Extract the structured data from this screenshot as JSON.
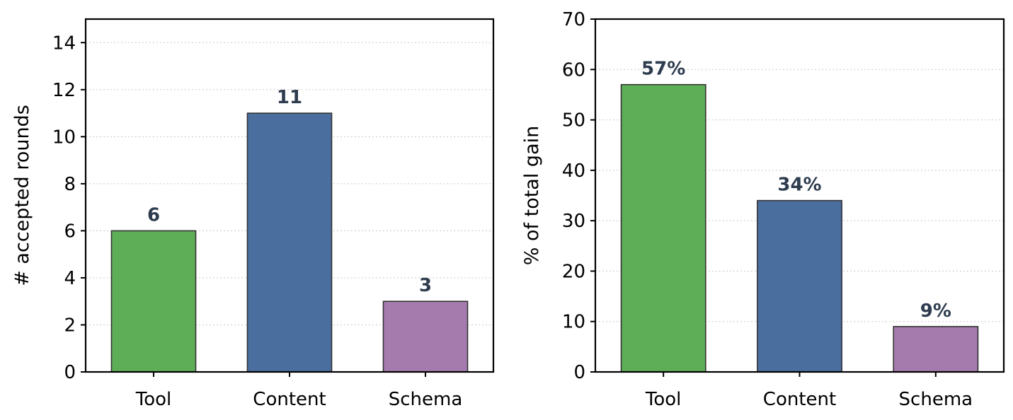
{
  "chart_data": [
    {
      "type": "bar",
      "categories": [
        "Tool",
        "Content",
        "Schema"
      ],
      "values": [
        6,
        11,
        3
      ],
      "data_labels": [
        "6",
        "11",
        "3"
      ],
      "title": "",
      "xlabel": "",
      "ylabel": "# accepted rounds",
      "ylim": [
        0,
        15
      ],
      "yticks": [
        0,
        2,
        4,
        6,
        8,
        10,
        12,
        14
      ],
      "grid": "horizontal dotted",
      "colors": [
        "#5eae58",
        "#4a6e9e",
        "#a57bae"
      ],
      "label_color": "#2e3c4f"
    },
    {
      "type": "bar",
      "categories": [
        "Tool",
        "Content",
        "Schema"
      ],
      "values": [
        57,
        34,
        9
      ],
      "data_labels": [
        "57%",
        "34%",
        "9%"
      ],
      "title": "",
      "xlabel": "",
      "ylabel": "% of total gain",
      "ylim": [
        0,
        70
      ],
      "yticks": [
        0,
        10,
        20,
        30,
        40,
        50,
        60,
        70
      ],
      "grid": "horizontal dotted",
      "colors": [
        "#5eae58",
        "#4a6e9e",
        "#a57bae"
      ],
      "label_color": "#2e3c4f"
    }
  ]
}
